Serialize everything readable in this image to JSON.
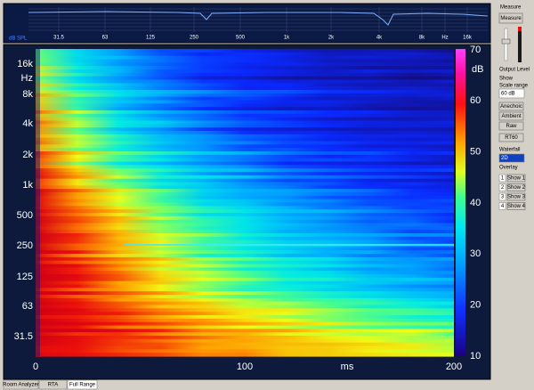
{
  "top_plot": {
    "y_label": "dB SPL",
    "x_labels": [
      "31.5",
      "63",
      "125",
      "250",
      "500",
      "1k",
      "2k",
      "4k",
      "8k",
      "Hz",
      "16k"
    ]
  },
  "spectrogram": {
    "y_labels": [
      "16k",
      "Hz",
      "8k",
      "4k",
      "2k",
      "1k",
      "500",
      "250",
      "125",
      "63",
      "31.5"
    ],
    "x_labels": [
      "0",
      "100",
      "ms",
      "200"
    ],
    "colorbar_unit": "dB",
    "colorbar_labels": [
      "70",
      "60",
      "50",
      "40",
      "30",
      "20",
      "10"
    ]
  },
  "side_panel": {
    "measure_group": "Measure",
    "measure_button": "Measure",
    "output_level": "Output Level",
    "show_group": "Show",
    "scale_range_label": "Scale range",
    "scale_range_value": "60 dB",
    "buttons": [
      "Anechoic",
      "Ambient",
      "Raw",
      "RT60"
    ],
    "waterfall_label": "Waterfall",
    "waterfall_value": "2D",
    "overlay_label": "Overlay",
    "overlays": [
      {
        "number": "1",
        "button": "Show 1"
      },
      {
        "number": "2",
        "button": "Show 2"
      },
      {
        "number": "3",
        "button": "Show 3"
      },
      {
        "number": "4",
        "button": "Show 4"
      }
    ]
  },
  "tabs": [
    "Room Analyzer",
    "RTA",
    "Full Range"
  ]
}
